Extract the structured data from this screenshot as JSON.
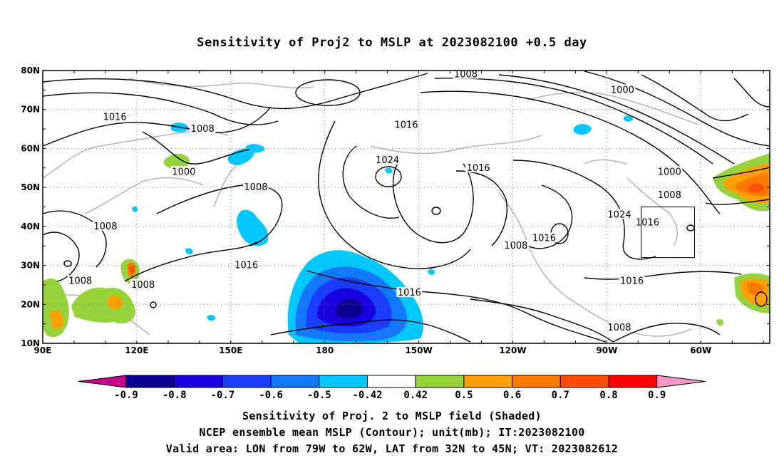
{
  "title": "Sensitivity of Proj2 to MSLP at 2023082100 +0.5 day",
  "axes": {
    "lat_labels": [
      "80N",
      "70N",
      "60N",
      "50N",
      "40N",
      "30N",
      "20N",
      "10N"
    ],
    "lon_labels": [
      "90E",
      "120E",
      "150E",
      "180",
      "150W",
      "120W",
      "90W",
      "60W"
    ]
  },
  "contours": {
    "labels": [
      {
        "text": "1008",
        "lon": 225,
        "lat": 79
      },
      {
        "text": "1000",
        "lon": 275,
        "lat": 75
      },
      {
        "text": "1016",
        "lon": 113,
        "lat": 68
      },
      {
        "text": "1008",
        "lon": 141,
        "lat": 65
      },
      {
        "text": "1016",
        "lon": 206,
        "lat": 66
      },
      {
        "text": "1000",
        "lon": 135,
        "lat": 54
      },
      {
        "text": "1024",
        "lon": 200,
        "lat": 57
      },
      {
        "text": "1016",
        "lon": 229,
        "lat": 55
      },
      {
        "text": "1000",
        "lon": 290,
        "lat": 54
      },
      {
        "text": "1008",
        "lon": 158,
        "lat": 50
      },
      {
        "text": "1008",
        "lon": 290,
        "lat": 48
      },
      {
        "text": "1008",
        "lon": 110,
        "lat": 40
      },
      {
        "text": "1024",
        "lon": 274,
        "lat": 43
      },
      {
        "text": "1016",
        "lon": 283,
        "lat": 41
      },
      {
        "text": "1016",
        "lon": 250,
        "lat": 37
      },
      {
        "text": "1008",
        "lon": 241,
        "lat": 35
      },
      {
        "text": "1016",
        "lon": 155,
        "lat": 30
      },
      {
        "text": "1008",
        "lon": 102,
        "lat": 26
      },
      {
        "text": "1008",
        "lon": 122,
        "lat": 25
      },
      {
        "text": "1016",
        "lon": 207,
        "lat": 23
      },
      {
        "text": "1016",
        "lon": 278,
        "lat": 26
      },
      {
        "text": "1008",
        "lon": 274,
        "lat": 14
      }
    ]
  },
  "valid_box": {
    "lon_min": -79,
    "lon_max": -62,
    "lat_min": 32,
    "lat_max": 45
  },
  "colorbar": {
    "labels": [
      "-0.9",
      "-0.8",
      "-0.7",
      "-0.6",
      "-0.5",
      "-0.42",
      "0.42",
      "0.5",
      "0.6",
      "0.7",
      "0.8",
      "0.9"
    ],
    "colors": [
      "#0a0090",
      "#1a00e0",
      "#1a3cff",
      "#1478ff",
      "#00c8ff",
      "#ffffff",
      "#96d23c",
      "#ffa000",
      "#ff7800",
      "#ff4b00",
      "#ff0000"
    ],
    "low_end": "#c8008c",
    "high_end": "#ff96c8"
  },
  "footer": {
    "line1": "Sensitivity of Proj. 2 to MSLP field (Shaded)",
    "line2": "NCEP ensemble mean MSLP (Contour); unit(mb); IT:2023082100",
    "line3": "Valid area: LON from 79W to 62W, LAT from 32N to 45N; VT: 2023082612"
  }
}
